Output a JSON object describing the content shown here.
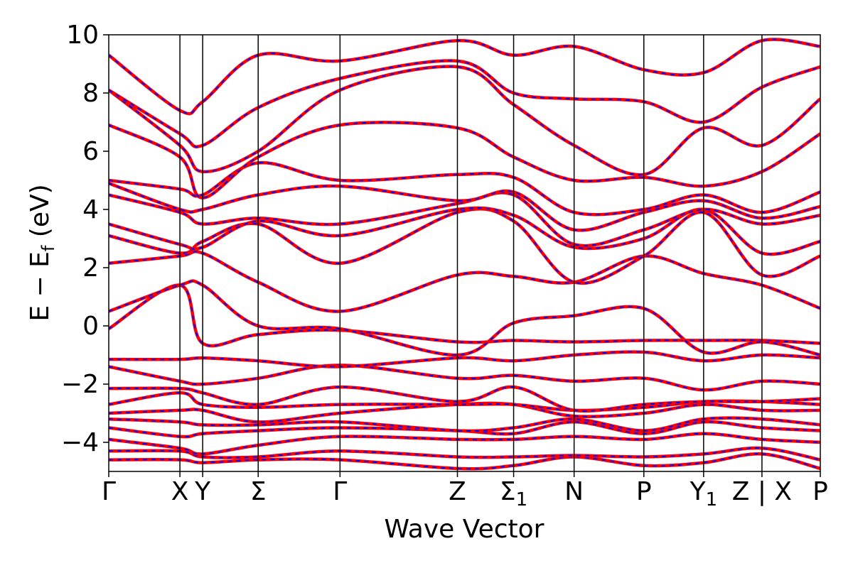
{
  "chart_data": {
    "type": "line",
    "xlabel": "Wave Vector",
    "ylabel": "E − E",
    "ylabel_sub": "f",
    "ylabel_unit": " (eV)",
    "ylim": [
      -5,
      10
    ],
    "yticks": [
      -4,
      -2,
      0,
      2,
      4,
      6,
      8,
      10
    ],
    "ytick_labels": [
      "−4",
      "−2",
      "0",
      "2",
      "4",
      "6",
      "8",
      "10"
    ],
    "path_length": 10,
    "kpoints": [
      {
        "pos": 0.0,
        "label": "Γ",
        "sub": ""
      },
      {
        "pos": 1.0,
        "label": "X",
        "sub": ""
      },
      {
        "pos": 1.32,
        "label": "Y",
        "sub": ""
      },
      {
        "pos": 2.1,
        "label": "Σ",
        "sub": ""
      },
      {
        "pos": 3.25,
        "label": "Γ",
        "sub": ""
      },
      {
        "pos": 4.9,
        "label": "Z",
        "sub": ""
      },
      {
        "pos": 5.69,
        "label": "Σ",
        "sub": "1"
      },
      {
        "pos": 6.54,
        "label": "N",
        "sub": ""
      },
      {
        "pos": 7.52,
        "label": "P",
        "sub": ""
      },
      {
        "pos": 8.36,
        "label": "Y",
        "sub": "1"
      },
      {
        "pos": 9.18,
        "label": "Z | X",
        "sub": ""
      },
      {
        "pos": 10.0,
        "label": "P",
        "sub": ""
      }
    ],
    "series_style": {
      "solid_color": "#ff0000",
      "dashed_color": "#0000ff"
    },
    "band_x": [
      0,
      1.0,
      1.32,
      2.1,
      3.25,
      4.9,
      5.69,
      6.54,
      7.52,
      8.36,
      9.18,
      10.0
    ],
    "bands": [
      [
        -4.6,
        -4.6,
        -4.7,
        -4.6,
        -4.6,
        -4.9,
        -4.8,
        -4.5,
        -4.8,
        -4.7,
        -4.4,
        -4.9
      ],
      [
        -4.3,
        -4.3,
        -4.5,
        -4.5,
        -4.3,
        -4.5,
        -4.5,
        -4.45,
        -4.5,
        -4.4,
        -4.2,
        -4.6
      ],
      [
        -3.9,
        -4.2,
        -4.4,
        -4.1,
        -3.8,
        -3.9,
        -3.9,
        -3.8,
        -3.9,
        -3.7,
        -3.9,
        -4.0
      ],
      [
        -3.5,
        -3.8,
        -3.7,
        -3.6,
        -3.5,
        -3.6,
        -3.7,
        -3.3,
        -3.7,
        -3.3,
        -3.5,
        -3.6
      ],
      [
        -3.2,
        -3.3,
        -3.4,
        -3.4,
        -3.3,
        -3.6,
        -3.5,
        -3.2,
        -3.6,
        -3.2,
        -3.2,
        -3.4
      ],
      [
        -3.0,
        -2.9,
        -2.9,
        -3.3,
        -3.0,
        -2.7,
        -2.7,
        -3.1,
        -3.0,
        -2.7,
        -2.9,
        -2.9
      ],
      [
        -2.7,
        -2.3,
        -2.7,
        -2.8,
        -2.7,
        -2.7,
        -2.7,
        -2.9,
        -2.8,
        -2.6,
        -2.6,
        -2.7
      ],
      [
        -2.15,
        -2.15,
        -2.3,
        -2.7,
        -2.1,
        -2.6,
        -2.1,
        -2.9,
        -2.7,
        -2.6,
        -2.6,
        -2.5
      ],
      [
        -1.4,
        -1.9,
        -2.0,
        -1.8,
        -1.35,
        -1.8,
        -1.7,
        -1.9,
        -1.8,
        -2.2,
        -1.9,
        -2.0
      ],
      [
        -1.15,
        -1.15,
        -1.1,
        -1.2,
        -1.4,
        -1.1,
        -1.2,
        -1.0,
        -0.9,
        -1.2,
        -1.0,
        -1.1
      ],
      [
        -0.1,
        1.4,
        -0.6,
        -0.3,
        -0.15,
        -0.55,
        -0.5,
        -0.55,
        -0.5,
        -0.5,
        -0.5,
        -0.6
      ],
      [
        0.5,
        1.4,
        1.4,
        0.0,
        -0.1,
        -1.0,
        0.1,
        0.35,
        0.6,
        -0.9,
        -0.55,
        -1.0
      ],
      [
        2.15,
        2.4,
        2.5,
        1.5,
        0.5,
        1.75,
        1.7,
        1.5,
        2.4,
        1.8,
        1.4,
        0.6
      ],
      [
        3.1,
        2.5,
        2.9,
        3.5,
        2.15,
        3.9,
        3.6,
        1.5,
        2.4,
        3.9,
        1.75,
        2.4
      ],
      [
        3.5,
        2.8,
        2.7,
        3.6,
        3.1,
        4.0,
        3.8,
        2.7,
        3.0,
        4.0,
        2.5,
        2.9
      ],
      [
        4.5,
        3.9,
        3.5,
        3.7,
        3.5,
        4.2,
        4.5,
        2.8,
        3.3,
        4.0,
        3.5,
        3.8
      ],
      [
        4.9,
        4.0,
        4.0,
        4.5,
        4.8,
        4.3,
        4.6,
        3.3,
        3.9,
        4.3,
        3.7,
        4.1
      ],
      [
        5.0,
        4.7,
        4.5,
        5.6,
        5.0,
        5.2,
        5.1,
        3.9,
        4.0,
        4.5,
        3.9,
        4.6
      ],
      [
        6.9,
        5.8,
        4.4,
        5.8,
        6.9,
        6.8,
        5.8,
        5.0,
        5.1,
        4.8,
        5.3,
        6.6
      ],
      [
        8.1,
        6.2,
        5.3,
        6.0,
        8.1,
        8.9,
        7.6,
        6.2,
        5.2,
        6.8,
        6.2,
        7.8
      ],
      [
        8.1,
        6.6,
        6.2,
        7.5,
        8.5,
        9.1,
        8.0,
        7.8,
        7.7,
        7.0,
        8.2,
        8.9
      ],
      [
        9.3,
        7.4,
        7.7,
        9.3,
        9.1,
        9.8,
        9.3,
        9.6,
        8.8,
        8.7,
        9.8,
        9.6
      ]
    ]
  }
}
